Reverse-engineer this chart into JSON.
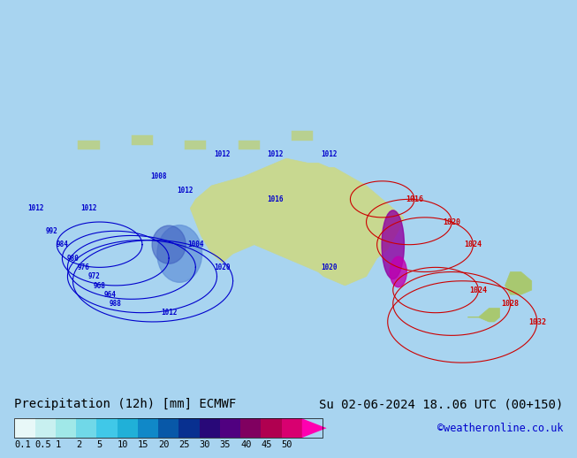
{
  "title_left": "Precipitation (12h) [mm] ECMWF",
  "title_right": "Su 02-06-2024 18..06 UTC (00+150)",
  "watermark": "©weatheronline.co.uk",
  "colorbar_levels": [
    0.1,
    0.5,
    1,
    2,
    5,
    10,
    15,
    20,
    25,
    30,
    35,
    40,
    45,
    50
  ],
  "colorbar_colors": [
    "#e0f8f8",
    "#c0f0f0",
    "#a0e8e8",
    "#70d8e8",
    "#40c8e8",
    "#20a8d8",
    "#1080c0",
    "#0858a8",
    "#083090",
    "#200870",
    "#500080",
    "#800060",
    "#b00050",
    "#d80070",
    "#ff00a0"
  ],
  "bg_color": "#a0d8f0",
  "map_bg": "#b8e8f8",
  "land_color": "#c8e8b0",
  "australia_color": "#d0e8a0",
  "font_color": "#000000",
  "title_fontsize": 10,
  "watermark_color": "#0000cc",
  "bottom_bar_height": 0.12,
  "colorbar_label_fontsize": 7.5
}
